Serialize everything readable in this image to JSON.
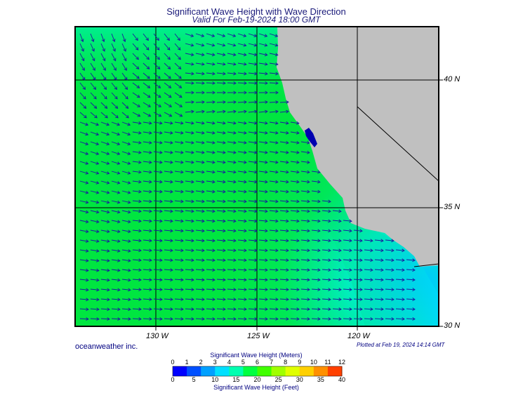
{
  "header": {
    "title": "Significant Wave Height with Wave Direction",
    "subtitle": "Valid For Feb-19-2024 18:00 GMT"
  },
  "map": {
    "latitude_labels": [
      "40 N",
      "35 N",
      "30 N"
    ],
    "longitude_labels": [
      "130 W",
      "125 W",
      "120 W"
    ],
    "colors": {
      "land": "#c0c0c0",
      "coast_water": "#00d8ff",
      "offshore_water": "#00e640"
    }
  },
  "footer": {
    "credit": "oceanweather inc.",
    "plotted": "Plotted at Feb 19, 2024 14:14 GMT"
  },
  "legend": {
    "title": "Significant Wave Height (Meters)",
    "meters": [
      "0",
      "1",
      "2",
      "3",
      "4",
      "5",
      "6",
      "7",
      "8",
      "9",
      "10",
      "11",
      "12"
    ],
    "feet": [
      "0",
      "5",
      "10",
      "15",
      "20",
      "25",
      "30",
      "35",
      "40"
    ],
    "footer": "Significant Wave Height (Feet)",
    "colors": [
      "#0000ff",
      "#0050ff",
      "#00a0ff",
      "#00e0ff",
      "#00ffb0",
      "#00ff40",
      "#40ff00",
      "#a0ff00",
      "#e0ff00",
      "#ffd000",
      "#ff9000",
      "#ff4000"
    ]
  }
}
